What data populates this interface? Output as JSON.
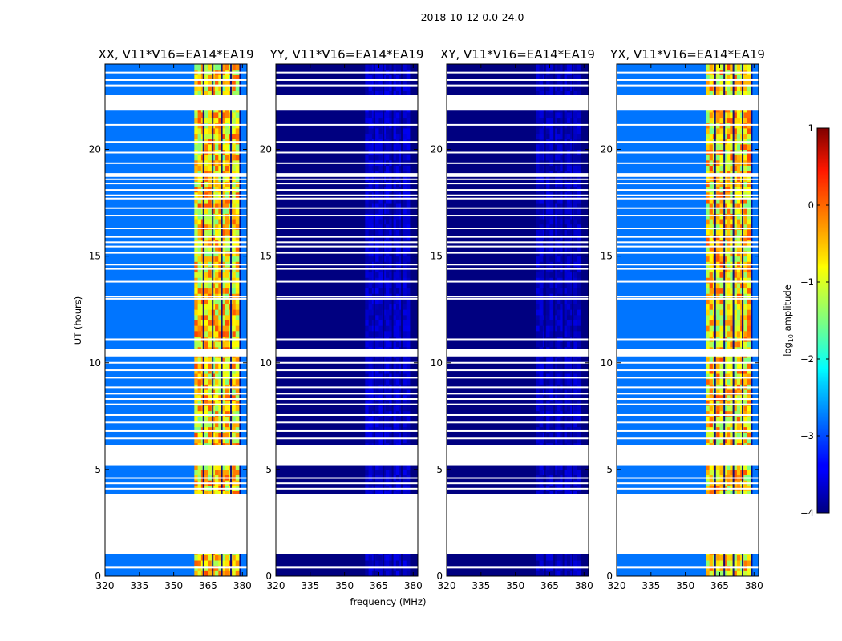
{
  "suptitle": "2018-10-12 0.0-24.0",
  "chart_data": {
    "type": "heatmap",
    "title": "2018-10-12 0.0-24.0",
    "xlabel": "frequency (MHz)",
    "ylabel": "UT (hours)",
    "xlim": [
      320,
      382
    ],
    "ylim": [
      0,
      24
    ],
    "xticks": [
      320,
      335,
      350,
      365,
      380
    ],
    "yticks": [
      0,
      5,
      10,
      15,
      20
    ],
    "colormap": "jet",
    "colorbar": {
      "label": "log10 amplitude",
      "label_main": "log",
      "label_sub": "10",
      "label_rest": " amplitude",
      "range": [
        -4,
        1
      ],
      "ticks": [
        "1",
        "0",
        "−1",
        "−2",
        "−3",
        "−4"
      ]
    },
    "band_mhz": [
      359,
      378.5
    ],
    "channel_lines_mhz": [
      363,
      367,
      371,
      375,
      379
    ],
    "gaps_hours": [
      [
        1.05,
        3.85
      ],
      [
        5.2,
        6.15
      ],
      [
        10.3,
        10.65
      ],
      [
        21.85,
        22.55
      ]
    ],
    "flag_lines_hours": [
      0.4,
      4.1,
      4.35,
      4.6,
      6.45,
      6.8,
      7.2,
      7.55,
      8.05,
      8.3,
      8.55,
      8.85,
      9.3,
      9.65,
      10.0,
      11.1,
      13.0,
      13.1,
      13.8,
      14.4,
      14.6,
      15.15,
      15.45,
      15.65,
      15.9,
      16.3,
      16.9,
      17.25,
      17.7,
      17.85,
      18.1,
      18.4,
      18.6,
      18.75,
      18.85,
      19.35,
      19.85,
      20.35,
      21.15,
      23.0,
      23.25,
      23.6
    ],
    "series": [
      {
        "name": "XX, V11*V16=EA14*EA19",
        "background_log_amp": -2.8,
        "band_log_amp": -1.0
      },
      {
        "name": "YY, V11*V16=EA14*EA19",
        "background_log_amp": -4.0,
        "band_log_amp": -3.7
      },
      {
        "name": "XY, V11*V16=EA14*EA19",
        "background_log_amp": -4.0,
        "band_log_amp": -3.75
      },
      {
        "name": "YX, V11*V16=EA14*EA19",
        "background_log_amp": -2.8,
        "band_log_amp": -1.0
      }
    ]
  }
}
